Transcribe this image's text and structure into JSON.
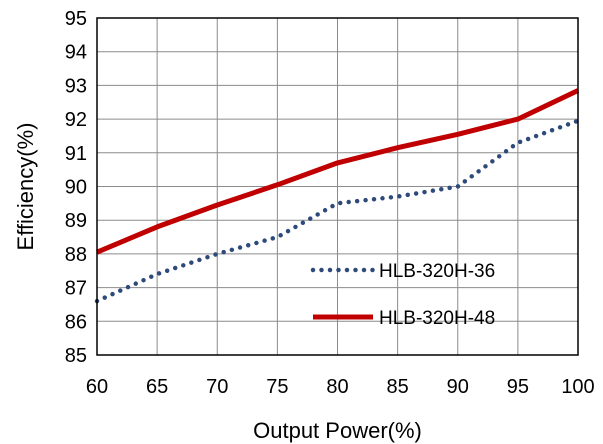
{
  "chart_data": {
    "type": "line",
    "xlabel": "Output Power(%)",
    "ylabel": "Efficiency(%)",
    "xlim": [
      60,
      100
    ],
    "ylim": [
      85,
      95
    ],
    "x_ticks": [
      60,
      65,
      70,
      75,
      80,
      85,
      90,
      95,
      100
    ],
    "y_ticks": [
      85,
      86,
      87,
      88,
      89,
      90,
      91,
      92,
      93,
      94,
      95
    ],
    "grid": true,
    "legend_position": "bottom-right",
    "series": [
      {
        "name": "HLB-320H-36",
        "style": "dotted",
        "color": "#2e4a7a",
        "x": [
          60,
          65,
          70,
          75,
          80,
          85,
          90,
          95,
          100
        ],
        "values": [
          86.6,
          87.4,
          88.0,
          88.5,
          89.5,
          89.7,
          90.0,
          91.3,
          91.95
        ]
      },
      {
        "name": "HLB-320H-48",
        "style": "solid",
        "color": "#c00000",
        "x": [
          60,
          65,
          70,
          75,
          80,
          85,
          90,
          95,
          100
        ],
        "values": [
          88.05,
          88.8,
          89.45,
          90.05,
          90.7,
          91.15,
          91.55,
          92.0,
          92.85
        ]
      }
    ]
  }
}
